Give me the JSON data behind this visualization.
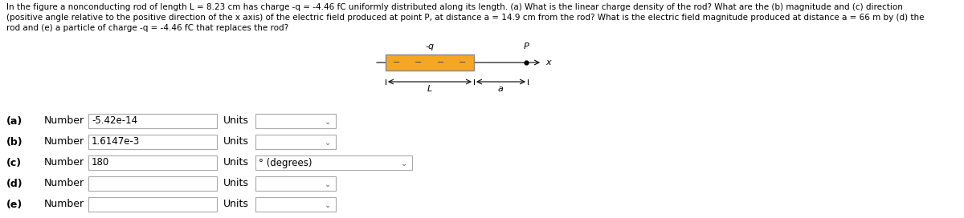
{
  "title_line1": "In the figure a nonconducting rod of length L = 8.23 cm has charge -q = -4.46 fC uniformly distributed along its length. (a) What is the linear charge density of the rod? What are the (b) magnitude and (c) direction",
  "title_line2": "(positive angle relative to the positive direction of the x axis) of the electric field produced at point P, at distance a = 14.9 cm from the rod? What is the electric field magnitude produced at distance a = 66 m by (d) the",
  "title_line3": "rod and (e) a particle of charge -q = -4.46 fC that replaces the rod?",
  "diagram": {
    "rod_color": "#F5A623",
    "rod_border": "#888888",
    "axis_color": "#222222",
    "text_color": "#333333",
    "label_neg_q": "-q",
    "label_P": "P",
    "label_x": "x",
    "label_L": "L",
    "label_a": "a",
    "n_minus": 4
  },
  "rows": [
    {
      "label": "(a)",
      "number_text": "-5.42e-14",
      "has_units_val": false,
      "units_val": ""
    },
    {
      "label": "(b)",
      "number_text": "1.6147e-3",
      "has_units_val": false,
      "units_val": ""
    },
    {
      "label": "(c)",
      "number_text": "180",
      "has_units_val": true,
      "units_val": "° (degrees)"
    },
    {
      "label": "(d)",
      "number_text": "",
      "has_units_val": false,
      "units_val": ""
    },
    {
      "label": "(e)",
      "number_text": "",
      "has_units_val": false,
      "units_val": ""
    }
  ],
  "bg": "#ffffff",
  "text_color": "#000000",
  "box_edge": "#aaaaaa",
  "title_fs": 7.5,
  "row_fs": 9.0,
  "diag_fs": 8.0
}
